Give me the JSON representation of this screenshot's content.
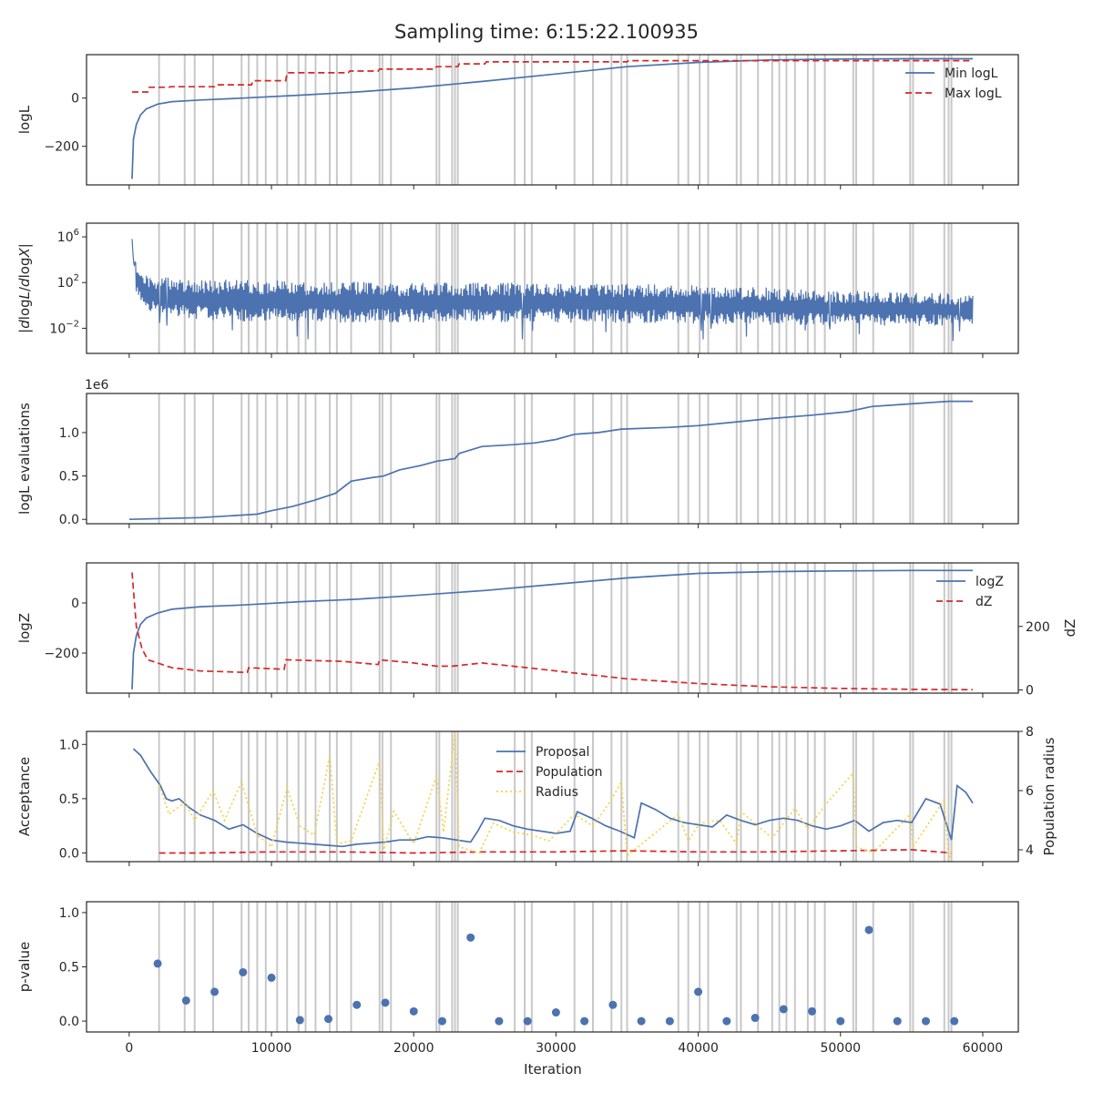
{
  "figure": {
    "title": "Sampling time: 6:15:22.100935",
    "xlabel": "Iteration",
    "x_ticks": [
      0,
      10000,
      20000,
      30000,
      40000,
      50000,
      60000
    ],
    "x_tick_labels": [
      "0",
      "10000",
      "20000",
      "30000",
      "40000",
      "50000",
      "60000"
    ],
    "xlim": [
      -3000,
      62500
    ]
  },
  "colors": {
    "blue": "#4c72b0",
    "red": "#d62728",
    "gold": "#f5d142",
    "grey_lines": "#c8c8c8"
  },
  "insertion_lines": [
    2100,
    3900,
    4600,
    5900,
    7900,
    8400,
    9000,
    9600,
    10400,
    11100,
    11900,
    12400,
    13100,
    14100,
    14600,
    15600,
    17600,
    17800,
    18400,
    21600,
    21800,
    22700,
    22900,
    23100,
    27100,
    27800,
    28300,
    31300,
    32600,
    33900,
    34600,
    35000,
    38600,
    39300,
    40100,
    40700,
    42700,
    43000,
    44200,
    45200,
    45700,
    46200,
    46800,
    47700,
    48200,
    48900,
    50900,
    51100,
    52300,
    54900,
    55100,
    57300,
    57600,
    57800
  ],
  "chart_data": [
    {
      "type": "line",
      "ylabel": "logL",
      "ylim": [
        -360,
        180
      ],
      "y_ticks": [
        0,
        -200
      ],
      "y_tick_labels": [
        "0",
        "−200"
      ],
      "legend": [
        "Min logL",
        "Max logL"
      ],
      "legend_placement": "top-right",
      "series": [
        {
          "name": "Min logL",
          "style": "solid",
          "color": "#4c72b0",
          "x": [
            200,
            300,
            500,
            800,
            1200,
            2000,
            3000,
            5000,
            8000,
            12000,
            16000,
            20000,
            25000,
            30000,
            35000,
            40000,
            45000,
            50000,
            55000,
            59300
          ],
          "y": [
            -335,
            -170,
            -110,
            -70,
            -45,
            -25,
            -15,
            -8,
            0,
            12,
            25,
            42,
            70,
            100,
            130,
            148,
            158,
            162,
            163,
            163
          ]
        },
        {
          "name": "Max logL",
          "style": "dashed",
          "color": "#d62728",
          "x": [
            200,
            1300,
            1400,
            2800,
            2900,
            6000,
            6100,
            8600,
            8700,
            11000,
            11100,
            15400,
            15500,
            17500,
            17600,
            21500,
            21600,
            23100,
            23200,
            25000,
            25100,
            35000,
            35100,
            59300
          ],
          "y": [
            25,
            25,
            45,
            45,
            47,
            47,
            55,
            55,
            72,
            72,
            105,
            105,
            112,
            112,
            120,
            120,
            130,
            130,
            142,
            142,
            150,
            150,
            155,
            155
          ]
        }
      ]
    },
    {
      "type": "line",
      "ylabel": "|dlogL/dlogX|",
      "yscale": "log",
      "ylim_log10": [
        -4.2,
        7.2
      ],
      "y_ticks": [
        6,
        2,
        -2
      ],
      "y_tick_labels": [
        "10^6",
        "10^2",
        "10^-2"
      ],
      "series": [
        {
          "name": "",
          "style": "noisy-band",
          "color": "#4c72b0",
          "x": [
            200,
            300,
            700,
            1500,
            5000,
            10000,
            20000,
            30000,
            40000,
            50000,
            59300
          ],
          "y_upper_log10": [
            6.5,
            4.5,
            3.0,
            2.5,
            2.3,
            2.2,
            2.0,
            2.0,
            1.8,
            1.3,
            1.0
          ],
          "y_lower_log10": [
            3.0,
            1.5,
            0.5,
            -0.5,
            -1.3,
            -1.5,
            -1.5,
            -1.5,
            -1.6,
            -1.8,
            -1.8
          ]
        }
      ]
    },
    {
      "type": "line",
      "ylabel": "logL evaluations",
      "offset_text": "1e6",
      "ylim": [
        -0.05,
        1.45
      ],
      "y_ticks": [
        0.0,
        0.5,
        1.0
      ],
      "y_tick_labels": [
        "0.0",
        "0.5",
        "1.0"
      ],
      "series": [
        {
          "name": "",
          "style": "solid",
          "color": "#4c72b0",
          "x": [
            0,
            5000,
            9000,
            10000,
            11500,
            13000,
            14500,
            15600,
            17000,
            17900,
            19000,
            20500,
            21600,
            22900,
            23200,
            24800,
            27000,
            28500,
            30000,
            31300,
            33000,
            34600,
            38000,
            40000,
            42500,
            45000,
            48000,
            50500,
            52200,
            54000,
            57600,
            59300
          ],
          "y": [
            0.0,
            0.02,
            0.06,
            0.1,
            0.15,
            0.22,
            0.3,
            0.44,
            0.48,
            0.5,
            0.57,
            0.62,
            0.67,
            0.7,
            0.76,
            0.84,
            0.86,
            0.88,
            0.92,
            0.98,
            1.0,
            1.04,
            1.06,
            1.08,
            1.12,
            1.16,
            1.2,
            1.24,
            1.3,
            1.32,
            1.36,
            1.36
          ]
        }
      ]
    },
    {
      "type": "line",
      "ylabel": "logZ",
      "ylim": [
        -360,
        160
      ],
      "y_ticks": [
        0,
        -200
      ],
      "y_tick_labels": [
        "0",
        "−200"
      ],
      "ylabel_right": "dZ",
      "ylim_right": [
        -10,
        400
      ],
      "y_ticks_right": [
        0,
        200
      ],
      "y_tick_labels_right": [
        "0",
        "200"
      ],
      "legend": [
        "logZ",
        "dZ"
      ],
      "legend_placement": "top-right",
      "series": [
        {
          "name": "logZ",
          "style": "solid",
          "color": "#4c72b0",
          "axis": "left",
          "x": [
            200,
            300,
            500,
            800,
            1200,
            2000,
            3000,
            5000,
            8000,
            12000,
            16000,
            20000,
            25000,
            30000,
            35000,
            40000,
            45000,
            50000,
            55000,
            59300
          ],
          "y": [
            -345,
            -200,
            -130,
            -85,
            -60,
            -40,
            -25,
            -15,
            -8,
            5,
            15,
            30,
            50,
            75,
            100,
            118,
            125,
            128,
            130,
            130
          ]
        },
        {
          "name": "dZ",
          "style": "dashed",
          "color": "#d62728",
          "axis": "right",
          "x": [
            200,
            500,
            900,
            1300,
            2000,
            3000,
            5000,
            8300,
            8400,
            10900,
            11000,
            15000,
            17500,
            17600,
            20000,
            21600,
            22700,
            24800,
            28000,
            32000,
            35000,
            40000,
            45000,
            50000,
            55000,
            59300
          ],
          "y": [
            370,
            200,
            130,
            95,
            85,
            70,
            60,
            55,
            70,
            65,
            95,
            90,
            80,
            95,
            85,
            75,
            75,
            85,
            70,
            50,
            35,
            20,
            10,
            5,
            2,
            1
          ]
        }
      ]
    },
    {
      "type": "line",
      "ylabel": "Acceptance",
      "ylim": [
        -0.08,
        1.12
      ],
      "y_ticks": [
        0.0,
        0.5,
        1.0
      ],
      "y_tick_labels": [
        "0.0",
        "0.5",
        "1.0"
      ],
      "ylabel_right": "Population radius",
      "ylim_right": [
        3.6,
        8.0
      ],
      "y_ticks_right": [
        4,
        6,
        8
      ],
      "y_tick_labels_right": [
        "4",
        "6",
        "8"
      ],
      "legend": [
        "Proposal",
        "Population",
        "Radius"
      ],
      "legend_placement": "upper-center",
      "series": [
        {
          "name": "Proposal",
          "style": "solid",
          "color": "#4c72b0",
          "axis": "left",
          "x": [
            300,
            800,
            1500,
            2200,
            2600,
            3000,
            3500,
            4200,
            5000,
            6000,
            7000,
            8000,
            9000,
            10000,
            11000,
            12000,
            13000,
            14000,
            15000,
            16000,
            17000,
            18000,
            19000,
            20000,
            21000,
            22000,
            23000,
            24000,
            24500,
            25000,
            26000,
            27000,
            28000,
            29000,
            30000,
            31000,
            31500,
            32500,
            33500,
            34500,
            35500,
            36000,
            37000,
            38000,
            39000,
            40000,
            41000,
            42000,
            43000,
            44000,
            45000,
            46000,
            47000,
            48000,
            49000,
            50000,
            51000,
            52000,
            53000,
            54000,
            55000,
            56000,
            57000,
            57800,
            58200,
            58800,
            59300
          ],
          "y": [
            0.96,
            0.9,
            0.75,
            0.62,
            0.5,
            0.48,
            0.5,
            0.42,
            0.35,
            0.3,
            0.22,
            0.26,
            0.18,
            0.12,
            0.1,
            0.09,
            0.08,
            0.07,
            0.06,
            0.08,
            0.09,
            0.1,
            0.12,
            0.12,
            0.15,
            0.14,
            0.12,
            0.1,
            0.2,
            0.32,
            0.3,
            0.25,
            0.22,
            0.2,
            0.18,
            0.2,
            0.38,
            0.32,
            0.25,
            0.2,
            0.14,
            0.46,
            0.4,
            0.32,
            0.28,
            0.26,
            0.24,
            0.35,
            0.3,
            0.26,
            0.3,
            0.32,
            0.3,
            0.25,
            0.22,
            0.25,
            0.3,
            0.2,
            0.28,
            0.3,
            0.28,
            0.5,
            0.45,
            0.12,
            0.62,
            0.56,
            0.46
          ]
        },
        {
          "name": "Population",
          "style": "dashed",
          "color": "#d62728",
          "axis": "left",
          "x": [
            2100,
            5000,
            10000,
            15000,
            20000,
            25000,
            30000,
            35000,
            40000,
            45000,
            50000,
            55000,
            57800
          ],
          "y": [
            0.0,
            0.0,
            0.01,
            0.01,
            0.0,
            0.01,
            0.01,
            0.02,
            0.01,
            0.01,
            0.02,
            0.03,
            0.0
          ]
        },
        {
          "name": "Radius",
          "style": "dotted",
          "color": "#f5d142",
          "axis": "right",
          "x": [
            2100,
            2800,
            3900,
            4600,
            5900,
            6700,
            7900,
            9000,
            10000,
            11100,
            12000,
            13000,
            14100,
            14600,
            15600,
            17600,
            17900,
            18600,
            20000,
            21600,
            22100,
            22900,
            23200,
            24600,
            25600,
            27000,
            28300,
            29500,
            31300,
            32600,
            33900,
            34600,
            35000,
            36800,
            38600,
            39300,
            40100,
            41500,
            42700,
            43000,
            44200,
            45200,
            46800,
            47700,
            48900,
            50900,
            51100,
            52300,
            54900,
            55100,
            57300,
            57600,
            57800
          ],
          "y": [
            6.2,
            5.2,
            5.6,
            5.0,
            6.0,
            5.0,
            6.3,
            4.5,
            4.1,
            6.1,
            4.8,
            4.5,
            7.2,
            4.2,
            4.3,
            7.0,
            4.0,
            5.3,
            4.2,
            6.5,
            4.6,
            8.0,
            4.1,
            3.9,
            4.9,
            4.6,
            4.5,
            4.3,
            5.2,
            4.8,
            5.7,
            6.3,
            3.8,
            4.5,
            5.2,
            4.3,
            4.9,
            5.0,
            4.2,
            5.3,
            4.8,
            4.4,
            5.4,
            4.7,
            5.5,
            6.6,
            4.1,
            3.9,
            5.2,
            4.1,
            5.7,
            3.6,
            4.0
          ]
        }
      ]
    },
    {
      "type": "scatter",
      "ylabel": "p-value",
      "ylim": [
        -0.1,
        1.1
      ],
      "y_ticks": [
        0.0,
        0.5,
        1.0
      ],
      "y_tick_labels": [
        "0.0",
        "0.5",
        "1.0"
      ],
      "series": [
        {
          "name": "",
          "color": "#4c72b0",
          "x": [
            2000,
            4000,
            6000,
            8000,
            10000,
            12000,
            14000,
            16000,
            18000,
            20000,
            22000,
            24000,
            26000,
            28000,
            30000,
            32000,
            34000,
            36000,
            38000,
            40000,
            42000,
            44000,
            46000,
            48000,
            50000,
            52000,
            54000,
            56000,
            58000
          ],
          "y": [
            0.53,
            0.19,
            0.27,
            0.45,
            0.4,
            0.01,
            0.02,
            0.15,
            0.17,
            0.09,
            0.0,
            0.77,
            0.0,
            0.0,
            0.08,
            0.0,
            0.15,
            0.0,
            0.0,
            0.27,
            0.0,
            0.03,
            0.11,
            0.09,
            0.0,
            0.84,
            0.0,
            0.0,
            0.0
          ]
        }
      ]
    }
  ]
}
